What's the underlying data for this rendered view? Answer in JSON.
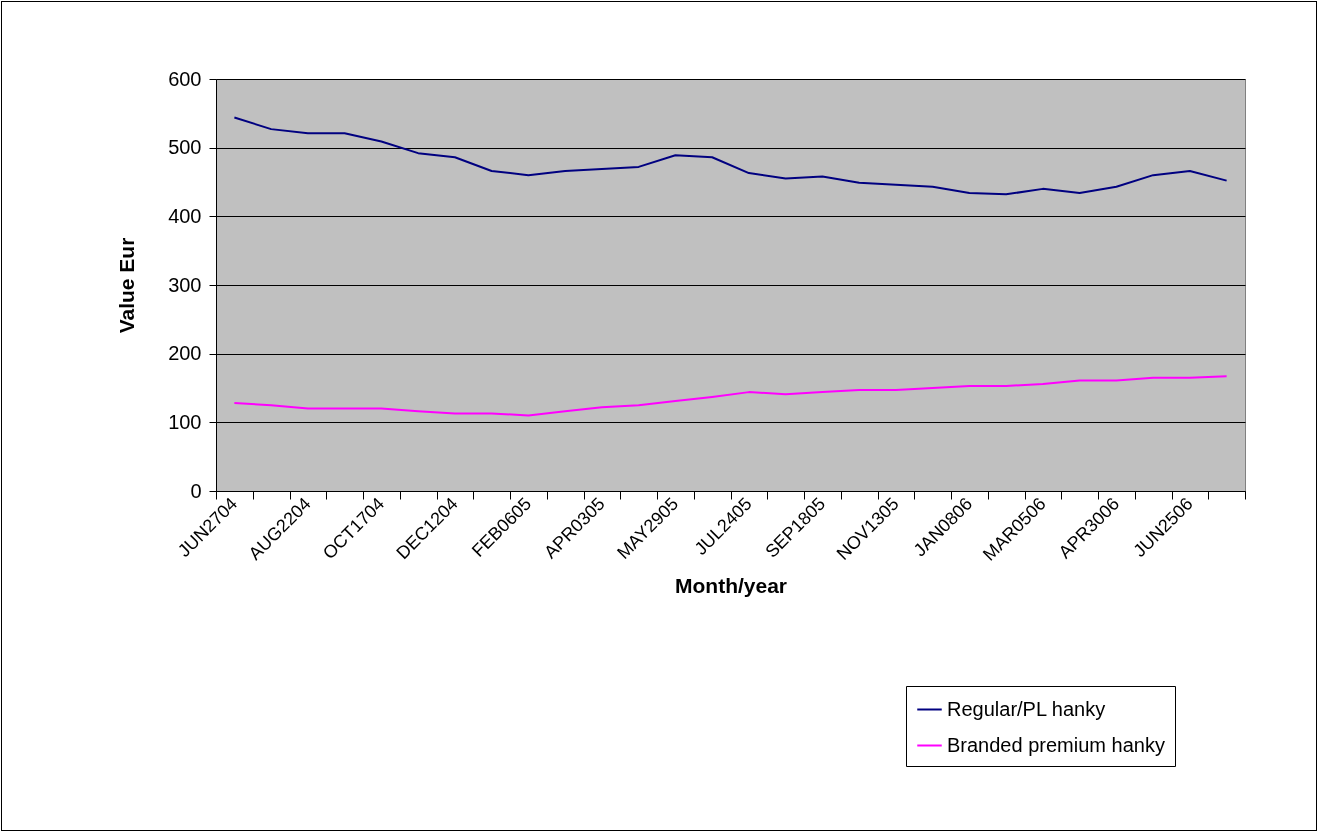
{
  "chart_data": {
    "type": "line",
    "xlabel": "Month/year",
    "ylabel": "Value Eur",
    "categories": [
      "JUN2704",
      null,
      "AUG2204",
      null,
      "OCT1704",
      null,
      "DEC1204",
      null,
      "FEB0605",
      null,
      "APR0305",
      null,
      "MAY2905",
      null,
      "JUL2405",
      null,
      "SEP1805",
      null,
      "NOV1305",
      null,
      "JAN0806",
      null,
      "MAR0506",
      null,
      "APR3006",
      null,
      "JUN2506",
      null
    ],
    "series": [
      {
        "name": "Regular/PL hanky",
        "color": "#000080",
        "values": [
          544,
          527,
          521,
          521,
          509,
          492,
          486,
          466,
          460,
          466,
          469,
          472,
          489,
          486,
          463,
          455,
          458,
          449,
          446,
          443,
          434,
          432,
          440,
          434,
          443,
          460,
          466,
          452
        ]
      },
      {
        "name": "Branded premium hanky",
        "color": "#ff00ff",
        "values": [
          128,
          125,
          120,
          120,
          120,
          116,
          113,
          113,
          110,
          116,
          122,
          125,
          131,
          137,
          144,
          141,
          144,
          147,
          147,
          150,
          153,
          153,
          156,
          161,
          161,
          165,
          165,
          167
        ]
      }
    ],
    "ylim": [
      0,
      600
    ],
    "yticks": [
      0,
      100,
      200,
      300,
      400,
      500,
      600
    ],
    "grid": "y",
    "legend": "bottom right",
    "line_style": "solid"
  }
}
